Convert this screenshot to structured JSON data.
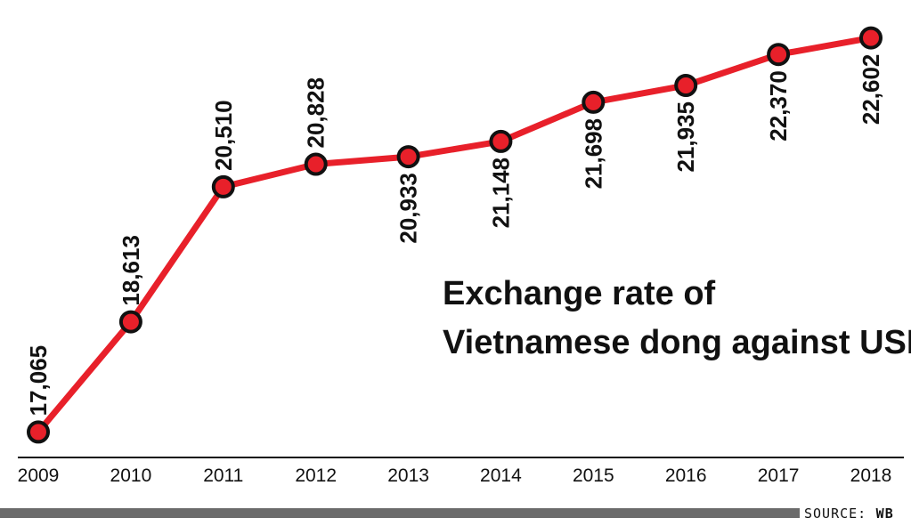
{
  "chart_data": {
    "type": "line",
    "title_lines": [
      "Exchange rate of",
      "Vietnamese dong against USD"
    ],
    "x": [
      "2009",
      "2010",
      "2011",
      "2012",
      "2013",
      "2014",
      "2015",
      "2016",
      "2017",
      "2018"
    ],
    "series": [
      {
        "values": [
          17065,
          18613,
          20510,
          20828,
          20933,
          21148,
          21698,
          21935,
          22370,
          22602
        ],
        "labels": [
          "17,065",
          "18,613",
          "20,510",
          "20,828",
          "20,933",
          "21,148",
          "21,698",
          "21,935",
          "22,370",
          "22,602"
        ]
      }
    ],
    "ylim": [
      16970,
      22710
    ],
    "grid": false,
    "label_position": [
      "above",
      "above",
      "above",
      "above",
      "below",
      "below",
      "below",
      "below",
      "below",
      "below"
    ]
  },
  "source": {
    "prefix": "SOURCE:",
    "name": "WB"
  },
  "colors": {
    "line": "#e8202a",
    "marker_fill": "#e8202a",
    "marker_stroke": "#111111",
    "axis": "#111111",
    "footer_bar": "#6b6b6b"
  }
}
